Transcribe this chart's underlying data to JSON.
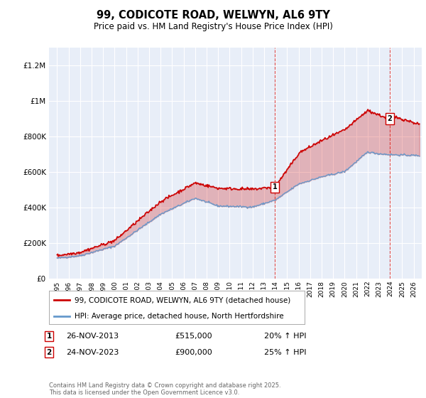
{
  "title": "99, CODICOTE ROAD, WELWYN, AL6 9TY",
  "subtitle": "Price paid vs. HM Land Registry's House Price Index (HPI)",
  "red_label": "99, CODICOTE ROAD, WELWYN, AL6 9TY (detached house)",
  "blue_label": "HPI: Average price, detached house, North Hertfordshire",
  "purchase1_label": "1",
  "purchase1_date": "26-NOV-2013",
  "purchase1_price": "£515,000",
  "purchase1_hpi": "20% ↑ HPI",
  "purchase2_label": "2",
  "purchase2_date": "24-NOV-2023",
  "purchase2_price": "£900,000",
  "purchase2_hpi": "25% ↑ HPI",
  "footer": "Contains HM Land Registry data © Crown copyright and database right 2025.\nThis data is licensed under the Open Government Licence v3.0.",
  "red_color": "#cc0000",
  "blue_color": "#6699cc",
  "bg_color": "#ffffff",
  "chart_bg": "#e8eef8",
  "grid_color": "#ffffff",
  "vline_color": "#cc0000",
  "ylim": [
    0,
    1300000
  ],
  "yticks": [
    0,
    200000,
    400000,
    600000,
    800000,
    1000000,
    1200000
  ],
  "xlim_min": 1994.3,
  "xlim_max": 2026.7,
  "purchase1_x": 2013.917,
  "purchase2_x": 2023.917,
  "purchase1_y": 515000,
  "purchase2_y": 900000
}
